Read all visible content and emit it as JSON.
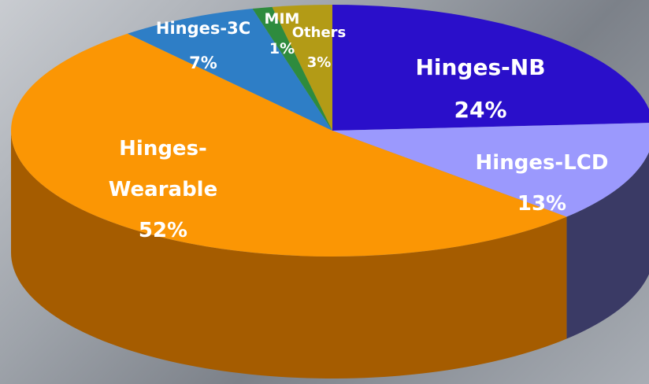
{
  "chart_data": {
    "type": "pie",
    "title": "",
    "slices": [
      {
        "name": "Hinges-NB",
        "value": 24,
        "label_lines": [
          "Hinges-NB",
          "24%"
        ],
        "color": "#2a0fca",
        "side_color": "#1c0a84",
        "label_color": "#ffffff"
      },
      {
        "name": "Hinges-LCD",
        "value": 13,
        "label_lines": [
          "Hinges-LCD",
          "13%"
        ],
        "color": "#9b99fd",
        "side_color": "#3f3f6e",
        "label_color": "#ffffff"
      },
      {
        "name": "Hinges-Wearable",
        "value": 52,
        "label_lines": [
          "Hinges-",
          "Wearable",
          "52%"
        ],
        "color": "#fb9604",
        "side_color": "#b36400",
        "label_color": "#ffffff"
      },
      {
        "name": "Hinges-3C",
        "value": 7,
        "label_lines": [
          "Hinges-3C",
          "7%"
        ],
        "color": "#2e7ec6",
        "side_color": "#1f5a8e",
        "label_color": "#ffffff"
      },
      {
        "name": "MIM",
        "value": 1,
        "label_lines": [
          "MIM",
          "1%"
        ],
        "color": "#2e8b3e",
        "side_color": "#1f6029",
        "label_color": "#ffffff"
      },
      {
        "name": "Others",
        "value": 3,
        "label_lines": [
          "Others",
          "3%"
        ],
        "color": "#b39b16",
        "side_color": "#7a6a0e",
        "label_color": "#ffffff"
      }
    ],
    "start_angle_deg": -90,
    "direction": "clockwise",
    "legend": "none"
  }
}
